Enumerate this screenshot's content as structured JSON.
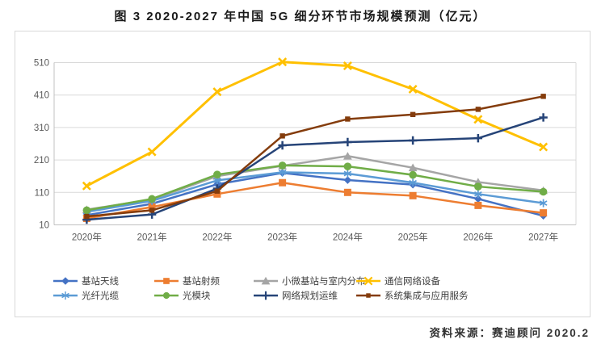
{
  "title": "图 3 2020-2027 年中国 5G 细分环节市场规模预测（亿元）",
  "source": "资料来源：赛迪顾问  2020.2",
  "colors": {
    "grid": "#d9d9d9",
    "axis": "#c0c0c0",
    "tick_label": "#595959",
    "legend_label": "#404040"
  },
  "chart_data": {
    "type": "line",
    "title": "图 3 2020-2027 年中国 5G 细分环节市场规模预测（亿元）",
    "categories": [
      "2020年",
      "2021年",
      "2022年",
      "2023年",
      "2024年",
      "2025年",
      "2026年",
      "2027年"
    ],
    "yticks": [
      10,
      110,
      210,
      310,
      410,
      510
    ],
    "ylim": [
      10,
      510
    ],
    "grid": true,
    "legend_position": "bottom",
    "series": [
      {
        "name": "基站天线",
        "color": "#4472C4",
        "marker": "diamond",
        "values": [
          40,
          75,
          135,
          170,
          148,
          134,
          90,
          38
        ]
      },
      {
        "name": "基站射频",
        "color": "#ED7D31",
        "marker": "square",
        "values": [
          30,
          65,
          105,
          140,
          110,
          100,
          70,
          47
        ]
      },
      {
        "name": "小微基站与室内分布",
        "color": "#A5A5A5",
        "marker": "triangle",
        "values": [
          57,
          88,
          160,
          192,
          222,
          186,
          142,
          116
        ]
      },
      {
        "name": "通信网络设备",
        "color": "#FFC000",
        "marker": "x",
        "values": [
          130,
          235,
          420,
          512,
          500,
          428,
          335,
          250
        ]
      },
      {
        "name": "光纤光缆",
        "color": "#5B9BD5",
        "marker": "asterisk",
        "values": [
          50,
          84,
          147,
          172,
          168,
          140,
          105,
          77
        ]
      },
      {
        "name": "光模块",
        "color": "#70AD47",
        "marker": "circle",
        "values": [
          55,
          90,
          165,
          193,
          190,
          164,
          128,
          112
        ]
      },
      {
        "name": "网络规划运维",
        "color": "#264478",
        "marker": "plus",
        "values": [
          26,
          42,
          122,
          255,
          265,
          270,
          277,
          341
        ]
      },
      {
        "name": "系统集成与应用服务",
        "color": "#843C0C",
        "marker": "dash",
        "values": [
          36,
          55,
          114,
          284,
          336,
          350,
          366,
          406
        ]
      }
    ]
  }
}
